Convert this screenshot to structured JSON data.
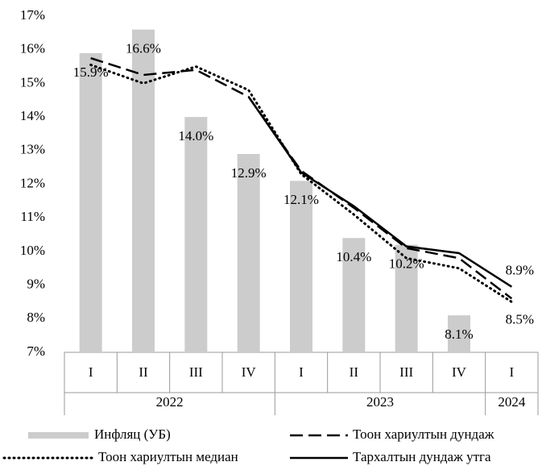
{
  "chart_data": {
    "type": "bar",
    "categories": [
      "I",
      "II",
      "III",
      "IV",
      "I",
      "II",
      "III",
      "IV",
      "I"
    ],
    "category_groups": [
      "2022",
      "2022",
      "2022",
      "2022",
      "2023",
      "2023",
      "2023",
      "2023",
      "2024"
    ],
    "ylim": [
      7,
      17
    ],
    "yticks": [
      {
        "value": 7,
        "label": "7%"
      },
      {
        "value": 8,
        "label": "8%"
      },
      {
        "value": 9,
        "label": "9%"
      },
      {
        "value": 10,
        "label": "10%"
      },
      {
        "value": 11,
        "label": "11%"
      },
      {
        "value": 12,
        "label": "12%"
      },
      {
        "value": 13,
        "label": "13%"
      },
      {
        "value": 14,
        "label": "14%"
      },
      {
        "value": 15,
        "label": "15%"
      },
      {
        "value": 16,
        "label": "16%"
      },
      {
        "value": 17,
        "label": "17%"
      }
    ],
    "grid": false,
    "series": [
      {
        "name": "Инфляц (УБ)",
        "type": "bar",
        "color": "#cccccc",
        "values": [
          15.9,
          16.6,
          14.0,
          12.9,
          12.1,
          10.4,
          10.2,
          8.1,
          null
        ],
        "value_labels": [
          "15.9%",
          "16.6%",
          "14.0%",
          "12.9%",
          "12.1%",
          "10.4%",
          "10.2%",
          "8.1%",
          null
        ]
      },
      {
        "name": "Тоон хариултын дундаж",
        "type": "line",
        "style": "dashed",
        "color": "#000000",
        "values": [
          15.75,
          15.25,
          15.4,
          14.6,
          12.4,
          11.3,
          10.1,
          9.8,
          8.6
        ]
      },
      {
        "name": "Тоон хариултын медиан",
        "type": "line",
        "style": "dotted",
        "color": "#000000",
        "values": [
          15.55,
          15.0,
          15.5,
          14.8,
          12.3,
          11.1,
          9.8,
          9.5,
          8.5
        ],
        "value_labels": [
          null,
          null,
          null,
          null,
          null,
          null,
          null,
          null,
          "8.5%"
        ]
      },
      {
        "name": "Тархалтын дундаж утга",
        "type": "line",
        "style": "solid",
        "color": "#000000",
        "values": [
          null,
          null,
          null,
          14.6,
          12.35,
          11.35,
          10.15,
          9.95,
          8.95
        ],
        "value_labels": [
          null,
          null,
          null,
          null,
          null,
          null,
          null,
          null,
          "8.9%"
        ]
      }
    ]
  }
}
